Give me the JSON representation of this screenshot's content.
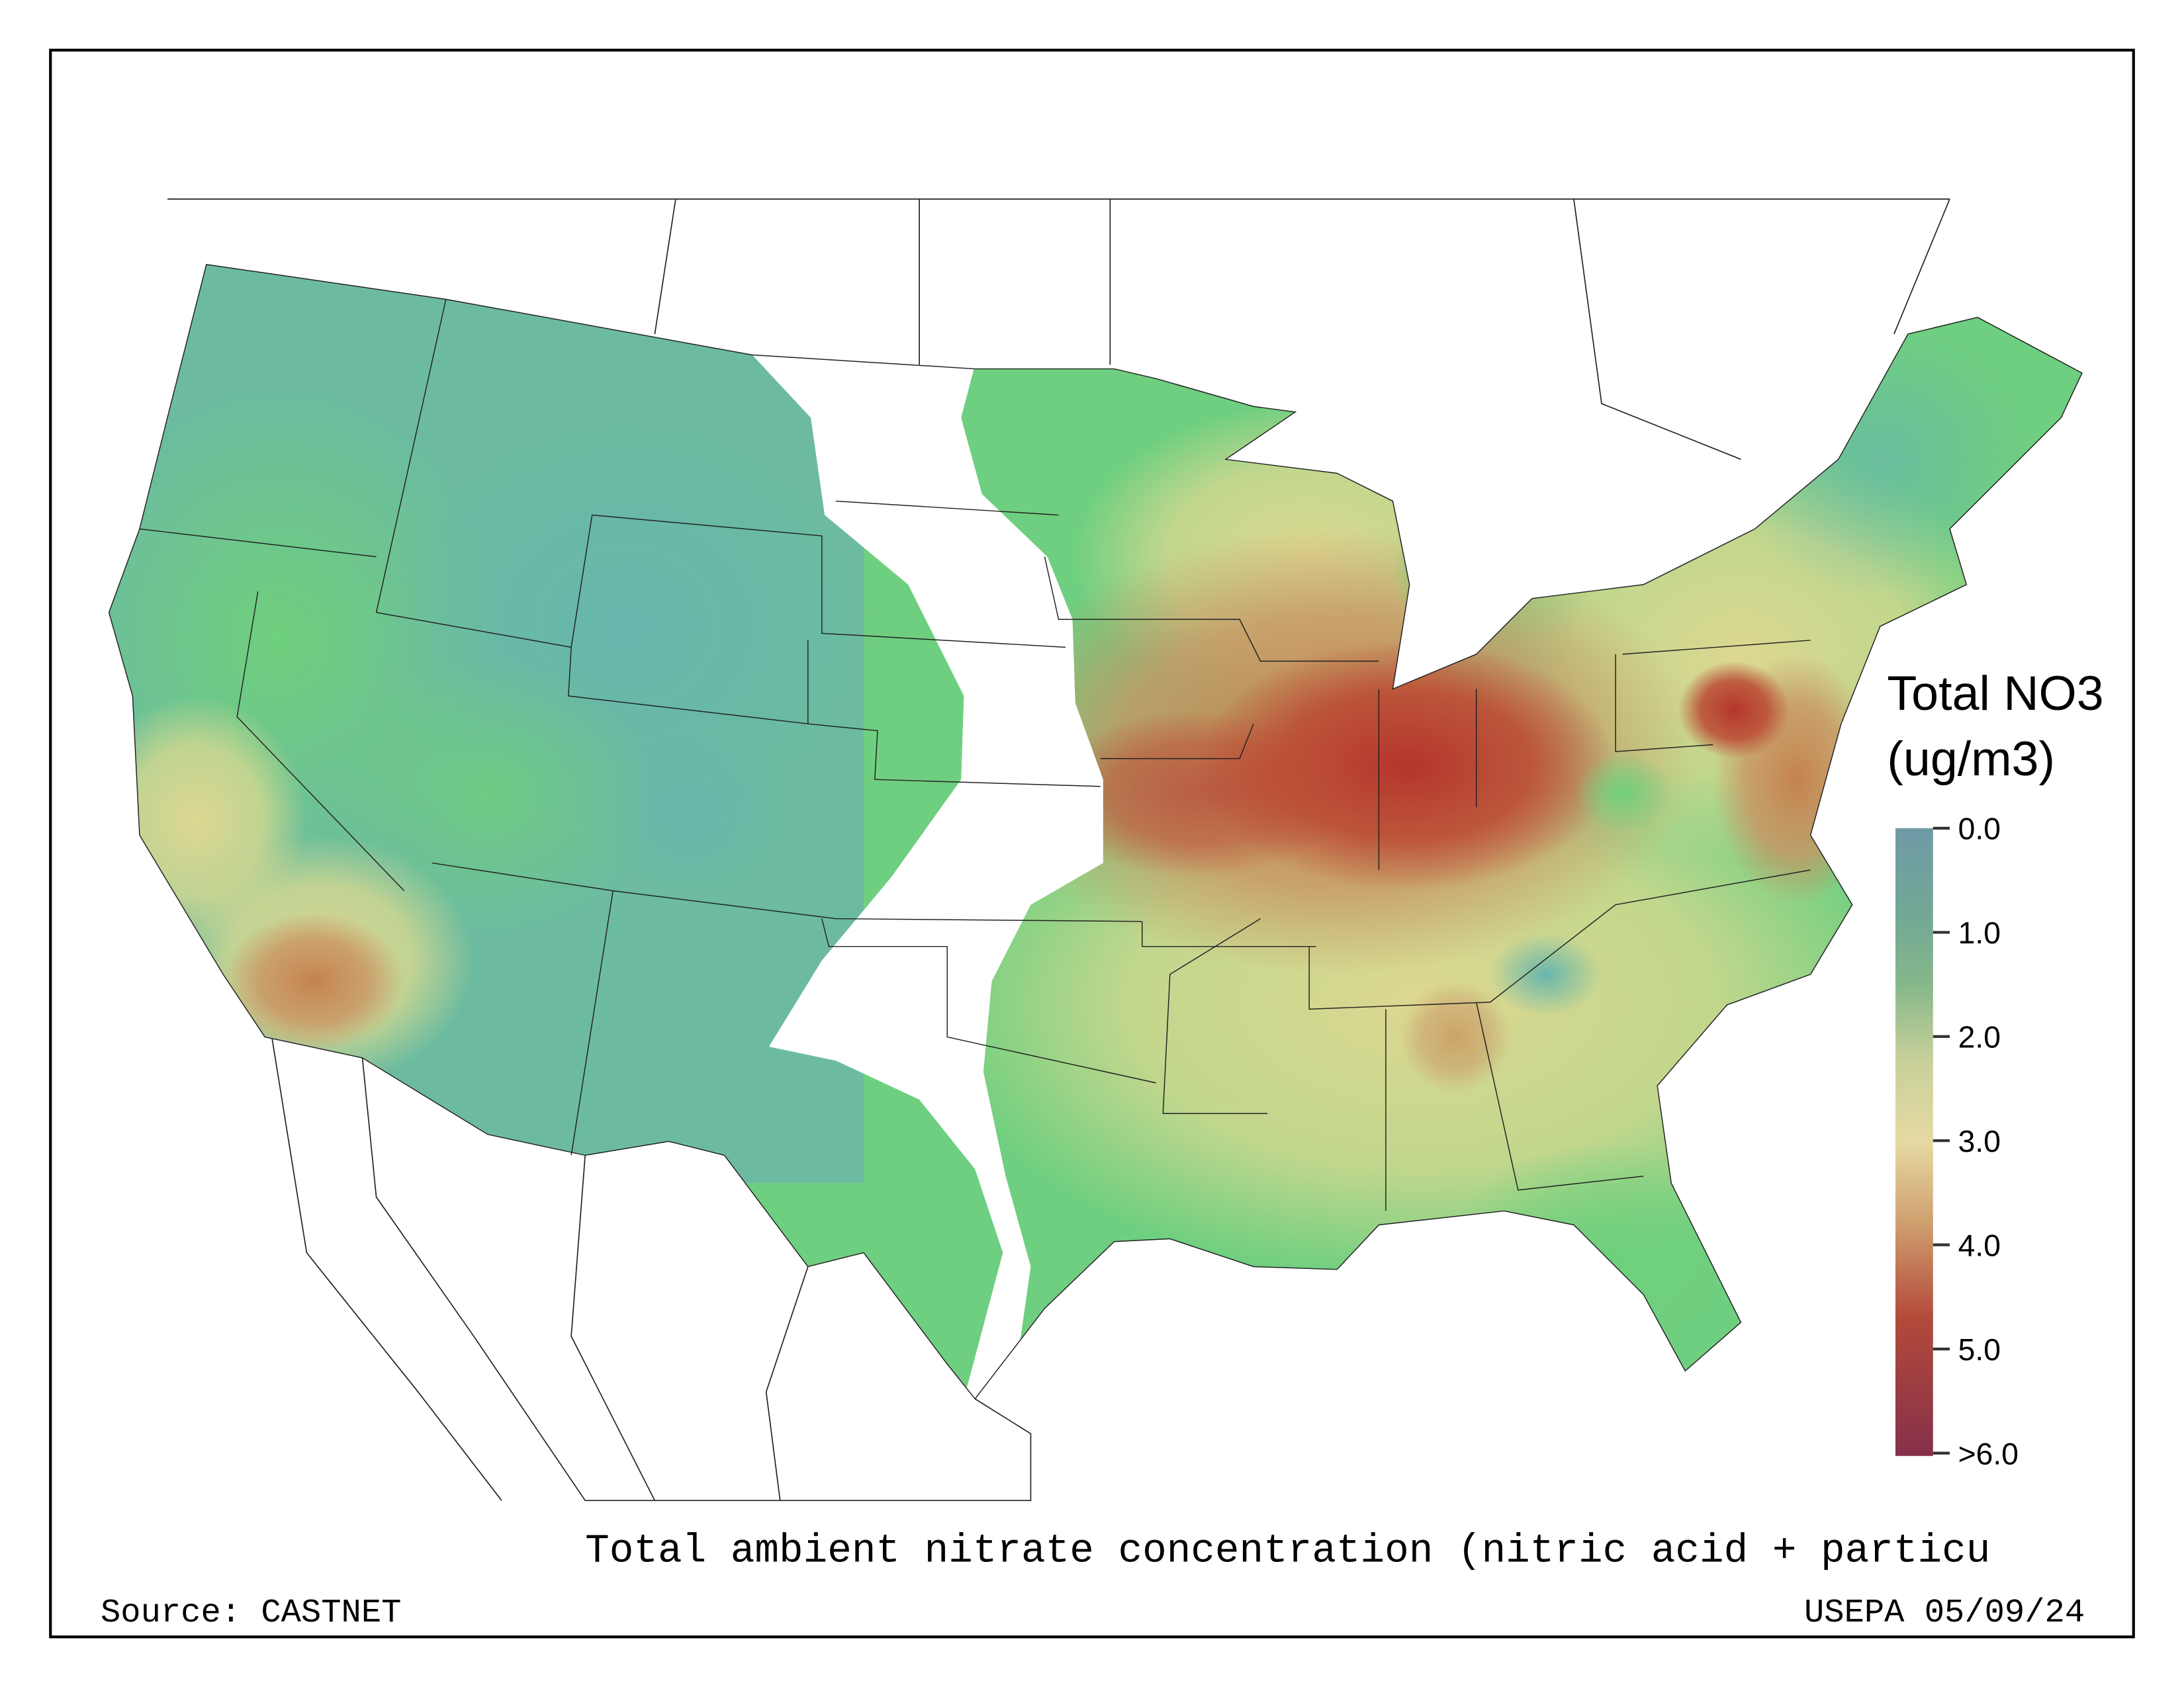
{
  "map": {
    "title": "Total ambient nitrate concentration (nitric acid + particu",
    "source": "Source: CASTNET",
    "credit": "USEPA 05/09/24"
  },
  "legend": {
    "title_line1": "Total NO3",
    "title_line2": "(ug/m3)",
    "ticks": [
      "0.0",
      "1.0",
      "2.0",
      "3.0",
      "4.0",
      "5.0",
      ">6.0"
    ],
    "colors": [
      "#6e9aa6",
      "#74a994",
      "#86b88a",
      "#c8d09a",
      "#e6d9a2",
      "#cf9f6e",
      "#b65a42",
      "#a63a3a",
      "#86304a"
    ]
  },
  "palette": {
    "low": "#6cb9a2",
    "green": "#6fd07c",
    "yellow": "#d9d98e",
    "tan": "#c99463",
    "red": "#b8392e"
  }
}
